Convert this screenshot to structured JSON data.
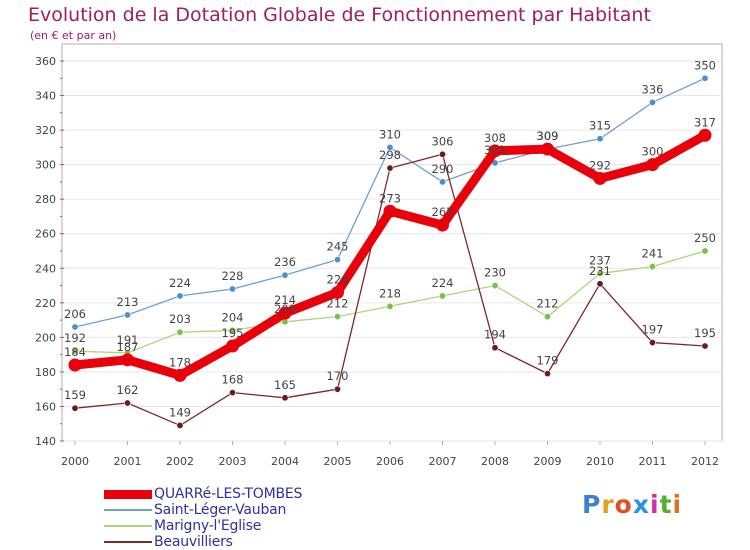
{
  "title": "Evolution de la Dotation Globale de Fonctionnement par Habitant",
  "subtitle": "(en € et par an)",
  "logo": {
    "text": "Proxiti",
    "letter_colors": [
      "#3a7fd0",
      "#e0a020",
      "#e05020",
      "#3090e0",
      "#d030a0",
      "#50b030",
      "#e07020"
    ]
  },
  "colors": {
    "background": "#ffffff",
    "plot_frame": "#b0b0b0",
    "grid": "#e6e6e6",
    "tick_marks": "#d04060",
    "title": "#a0205a",
    "labels": "#444444",
    "legend_text": "#3030a0"
  },
  "chart_data": {
    "type": "line",
    "x": [
      "2000",
      "2001",
      "2002",
      "2003",
      "2004",
      "2005",
      "2006",
      "2007",
      "2008",
      "2009",
      "2010",
      "2011",
      "2012"
    ],
    "yticks": [
      140,
      160,
      180,
      200,
      220,
      240,
      260,
      280,
      300,
      320,
      340,
      360
    ],
    "ylim": [
      140,
      360
    ],
    "grid": true,
    "legend_position": "bottom-left",
    "series": [
      {
        "name": "Saint-Léger-Vauban",
        "color": "#6fa0d0",
        "marker": "#4a90d0",
        "values": [
          206,
          213,
          224,
          228,
          236,
          245,
          310,
          290,
          301,
          309,
          315,
          336,
          350
        ],
        "labels": [
          "206",
          "213",
          "224",
          "228",
          "236",
          "245",
          "310",
          "290",
          "301",
          "309",
          "315",
          "336",
          "350"
        ]
      },
      {
        "name": "Marigny-l'Eglise",
        "color": "#a8d87a",
        "marker": "#7cc04a",
        "values": [
          192,
          191,
          203,
          204,
          209,
          212,
          218,
          224,
          230,
          212,
          237,
          241,
          250
        ],
        "labels": [
          "192",
          "191",
          "203",
          "204",
          "209",
          "212",
          "218",
          "224",
          "230",
          "212",
          "237",
          "241",
          "250"
        ]
      },
      {
        "name": "Beauvilliers",
        "color": "#7a2a2a",
        "marker": "#6a1a20",
        "values": [
          159,
          162,
          149,
          168,
          165,
          170,
          298,
          306,
          194,
          179,
          231,
          197,
          195
        ],
        "labels": [
          "159",
          "162",
          "149",
          "168",
          "165",
          "170",
          "298",
          "306",
          "194",
          "179",
          "231",
          "197",
          "195"
        ]
      },
      {
        "name": "QUARRé-LES-TOMBES",
        "color": "#e8000a",
        "marker": "#e8000a",
        "bold": true,
        "values": [
          184,
          187,
          178,
          195,
          214,
          226,
          273,
          265,
          308,
          309,
          292,
          300,
          317
        ],
        "labels": [
          "184",
          "187",
          "178",
          "195",
          "214",
          "226",
          "273",
          "265",
          "308",
          "309",
          "292",
          "300",
          "317"
        ]
      }
    ]
  }
}
